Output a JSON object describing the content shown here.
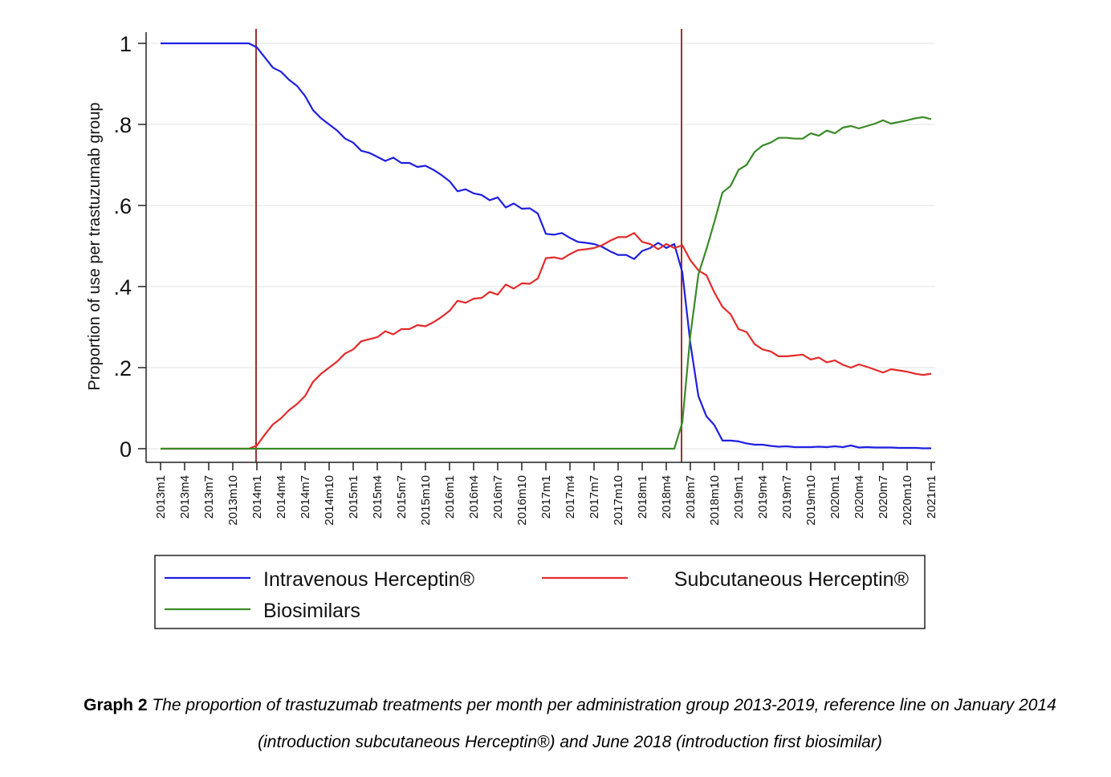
{
  "chart_data": {
    "type": "line",
    "title": "",
    "xlabel": "",
    "ylabel": "Proportion of use per trastuzumab group",
    "ylim": [
      0,
      1
    ],
    "x_start": "2013m1",
    "x_step_months": 1,
    "x_tick_labels": [
      "2013m1",
      "2013m4",
      "2013m7",
      "2013m10",
      "2014m1",
      "2014m4",
      "2014m7",
      "2014m10",
      "2015m1",
      "2015m4",
      "2015m7",
      "2015m10",
      "2016m1",
      "2016m4",
      "2016m7",
      "2016m10",
      "2017m1",
      "2017m4",
      "2017m7",
      "2017m10",
      "2018m1",
      "2018m4",
      "2018m7",
      "2018m10",
      "2019m1",
      "2019m4",
      "2019m7",
      "2019m10",
      "2020m1",
      "2020m4",
      "2020m7",
      "2020m10",
      "2021m1"
    ],
    "y_ticks": [
      0,
      0.2,
      0.4,
      0.6,
      0.8,
      1
    ],
    "y_tick_labels": [
      "0",
      ".2",
      ".4",
      ".6",
      ".8",
      "1"
    ],
    "reference_lines_x": [
      "2014m1",
      "2018m6"
    ],
    "legend_position": "bottom",
    "series": [
      {
        "name": "Intravenous Herceptin®",
        "color": "#1f1fe0",
        "values": [
          1,
          1,
          1,
          1,
          1,
          1,
          1,
          1,
          1,
          1,
          1,
          1,
          0.99,
          0.965,
          0.94,
          0.93,
          0.91,
          0.895,
          0.87,
          0.835,
          0.815,
          0.8,
          0.785,
          0.765,
          0.755,
          0.735,
          0.73,
          0.72,
          0.71,
          0.718,
          0.705,
          0.705,
          0.695,
          0.698,
          0.688,
          0.675,
          0.66,
          0.635,
          0.64,
          0.63,
          0.626,
          0.613,
          0.62,
          0.595,
          0.605,
          0.592,
          0.593,
          0.58,
          0.53,
          0.528,
          0.532,
          0.52,
          0.51,
          0.508,
          0.505,
          0.498,
          0.487,
          0.478,
          0.478,
          0.468,
          0.488,
          0.495,
          0.508,
          0.495,
          0.505,
          0.435,
          0.26,
          0.13,
          0.08,
          0.058,
          0.02,
          0.02,
          0.018,
          0.013,
          0.01,
          0.01,
          0.007,
          0.005,
          0.006,
          0.004,
          0.004,
          0.004,
          0.005,
          0.004,
          0.006,
          0.004,
          0.008,
          0.003,
          0.004,
          0.003,
          0.003,
          0.003,
          0.002,
          0.002,
          0.002,
          0.001,
          0.001
        ]
      },
      {
        "name": "Subcutaneous Herceptin®",
        "color": "#e32b2b",
        "values": [
          0,
          0,
          0,
          0,
          0,
          0,
          0,
          0,
          0,
          0,
          0,
          0,
          0.008,
          0.035,
          0.06,
          0.075,
          0.095,
          0.11,
          0.13,
          0.165,
          0.185,
          0.2,
          0.215,
          0.235,
          0.245,
          0.265,
          0.27,
          0.275,
          0.29,
          0.282,
          0.295,
          0.295,
          0.305,
          0.302,
          0.312,
          0.325,
          0.34,
          0.365,
          0.36,
          0.37,
          0.372,
          0.387,
          0.38,
          0.405,
          0.395,
          0.408,
          0.407,
          0.42,
          0.47,
          0.472,
          0.468,
          0.48,
          0.49,
          0.492,
          0.495,
          0.502,
          0.513,
          0.522,
          0.522,
          0.532,
          0.51,
          0.505,
          0.492,
          0.505,
          0.495,
          0.502,
          0.465,
          0.44,
          0.428,
          0.385,
          0.35,
          0.332,
          0.295,
          0.288,
          0.258,
          0.245,
          0.24,
          0.228,
          0.228,
          0.23,
          0.232,
          0.22,
          0.225,
          0.213,
          0.218,
          0.207,
          0.2,
          0.208,
          0.202,
          0.195,
          0.188,
          0.196,
          0.193,
          0.19,
          0.185,
          0.182,
          0.185
        ]
      },
      {
        "name": "Biosimilars",
        "color": "#3a8a28",
        "values": [
          0,
          0,
          0,
          0,
          0,
          0,
          0,
          0,
          0,
          0,
          0,
          0,
          0,
          0,
          0,
          0,
          0,
          0,
          0,
          0,
          0,
          0,
          0,
          0,
          0,
          0,
          0,
          0,
          0,
          0,
          0,
          0,
          0,
          0,
          0,
          0,
          0,
          0,
          0,
          0,
          0,
          0,
          0,
          0,
          0,
          0,
          0,
          0,
          0,
          0,
          0,
          0,
          0,
          0,
          0,
          0,
          0,
          0,
          0,
          0,
          0,
          0,
          0,
          0,
          0,
          0.065,
          0.28,
          0.43,
          0.492,
          0.56,
          0.632,
          0.648,
          0.688,
          0.7,
          0.732,
          0.748,
          0.755,
          0.767,
          0.767,
          0.765,
          0.765,
          0.778,
          0.772,
          0.785,
          0.778,
          0.792,
          0.796,
          0.79,
          0.796,
          0.802,
          0.81,
          0.802,
          0.806,
          0.81,
          0.815,
          0.818,
          0.813
        ]
      }
    ]
  },
  "caption": {
    "label": "Graph 2",
    "text": "The proportion of trastuzumab treatments per month per administration group 2013-2019, reference line on January 2014 (introduction subcutaneous Herceptin®) and June 2018 (introduction first biosimilar)"
  }
}
